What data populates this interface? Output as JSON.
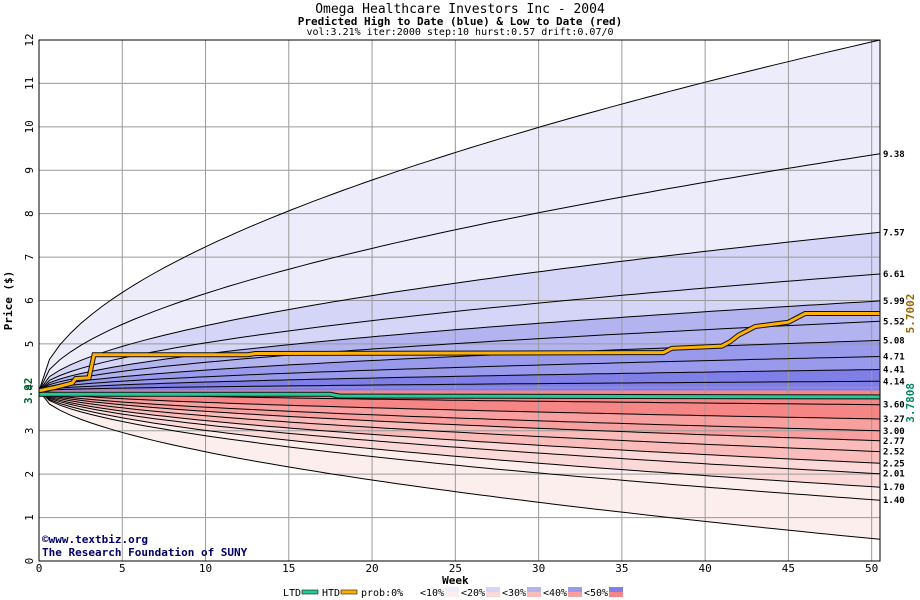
{
  "chart_data": {
    "type": "area",
    "title": "Omega Healthcare Investors Inc - 2004",
    "subtitle": "Predicted High to Date (blue) &  Low to Date (red)",
    "params": "vol:3.21% iter:2000 step:10 hurst:0.57 drift:0.07/0",
    "xlabel": "Week",
    "ylabel": "Price ($)",
    "xlim": [
      0,
      50.5
    ],
    "ylim": [
      0,
      12
    ],
    "x_ticks": [
      0,
      5,
      10,
      15,
      20,
      25,
      30,
      35,
      40,
      45,
      50
    ],
    "y_ticks": [
      0,
      1,
      2,
      3,
      4,
      5,
      6,
      7,
      8,
      9,
      10,
      11,
      12
    ],
    "grid": true,
    "start_price": 3.92,
    "start_label": "3.92",
    "last_htd_label": "5.7002",
    "last_ltd_label": "3.7808",
    "colors": {
      "high_band": [
        "#ececfb",
        "#d5d5f7",
        "#b3b3f0",
        "#9a9aec",
        "#7f7fe7"
      ],
      "low_band": [
        "#fdeeee",
        "#fcd9d9",
        "#fabbbb",
        "#f8a0a0",
        "#f68585"
      ],
      "htd_line": "#ffb000",
      "ltd_line": "#22cc99",
      "start_label_color": "#006633",
      "htd_label_color": "#996600",
      "ltd_label_color": "#008866"
    },
    "high_percentiles": [
      {
        "end": 12.0,
        "label": ""
      },
      {
        "end": 9.38,
        "label": "9.38"
      },
      {
        "end": 7.57,
        "label": "7.57"
      },
      {
        "end": 6.61,
        "label": "6.61"
      },
      {
        "end": 5.99,
        "label": "5.99"
      },
      {
        "end": 5.52,
        "label": "5.52"
      },
      {
        "end": 5.08,
        "label": "5.08"
      },
      {
        "end": 4.71,
        "label": "4.71"
      },
      {
        "end": 4.41,
        "label": "4.41"
      },
      {
        "end": 4.14,
        "label": "4.14"
      }
    ],
    "low_percentiles": [
      {
        "end": 3.6,
        "label": "3.60"
      },
      {
        "end": 3.27,
        "label": "3.27"
      },
      {
        "end": 3.0,
        "label": "3.00"
      },
      {
        "end": 2.77,
        "label": "2.77"
      },
      {
        "end": 2.52,
        "label": "2.52"
      },
      {
        "end": 2.25,
        "label": "2.25"
      },
      {
        "end": 2.01,
        "label": "2.01"
      },
      {
        "end": 1.7,
        "label": "1.70"
      },
      {
        "end": 1.4,
        "label": "1.40"
      },
      {
        "end": 0.5,
        "label": ""
      }
    ],
    "htd_series": {
      "x": [
        0,
        1.0,
        1.5,
        2.0,
        2.2,
        3.0,
        3.3,
        12.5,
        13.0,
        37.5,
        38.0,
        41.0,
        41.5,
        42.0,
        42.5,
        43.0,
        44.0,
        45.0,
        45.5,
        46.0,
        50.5
      ],
      "y": [
        3.92,
        4.0,
        4.05,
        4.1,
        4.2,
        4.22,
        4.75,
        4.75,
        4.78,
        4.8,
        4.9,
        4.95,
        5.05,
        5.2,
        5.3,
        5.4,
        5.45,
        5.5,
        5.6,
        5.7,
        5.7
      ]
    },
    "ltd_series": {
      "x": [
        0,
        17.5,
        18,
        50.5
      ],
      "y": [
        3.84,
        3.84,
        3.8,
        3.78
      ]
    },
    "watermark": {
      "copyright": "©www.textbiz.org",
      "org": "The Research Foundation of SUNY"
    },
    "legend": [
      {
        "label": "LTD",
        "kind": "line",
        "color": "#22cc99"
      },
      {
        "label": "HTD",
        "kind": "line",
        "color": "#ffb000"
      },
      {
        "label": "prob:0%",
        "kind": "swatch",
        "colors": [
          "#ffffff",
          "#ffffff"
        ]
      },
      {
        "label": "<10%",
        "kind": "swatch",
        "colors": [
          "#ececfb",
          "#fdeeee"
        ]
      },
      {
        "label": "<20%",
        "kind": "swatch",
        "colors": [
          "#d5d5f7",
          "#fcd9d9"
        ]
      },
      {
        "label": "<30%",
        "kind": "swatch",
        "colors": [
          "#b3b3f0",
          "#fabbbb"
        ]
      },
      {
        "label": "<40%",
        "kind": "swatch",
        "colors": [
          "#9a9aec",
          "#f8a0a0"
        ]
      },
      {
        "label": "<50%",
        "kind": "swatch",
        "colors": [
          "#7f7fe7",
          "#f68585"
        ]
      }
    ]
  }
}
